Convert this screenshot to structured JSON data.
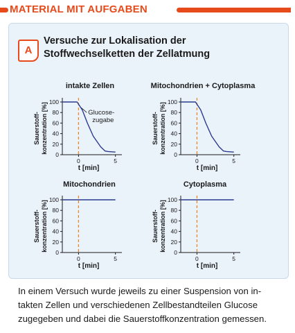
{
  "section": {
    "title": "MATERIAL MIT AUFGABEN",
    "accent_color": "#e64a1b"
  },
  "task": {
    "badge": "A",
    "heading_line1": "Versuche zur Lokalisation der",
    "heading_line2": "Stoffwechselketten der Zellatmung"
  },
  "caption": {
    "line1": "In einem Versuch wurde jeweils zu einer Suspension von in-",
    "line2": "takten Zellen und verschiedenen Zellbestandteilen Glucose",
    "line3": "zugegeben und dabei die Sauerstoffkonzentration gemessen."
  },
  "chart_data": [
    {
      "type": "line",
      "title": "intakte Zellen",
      "xlabel": "t [min]",
      "ylabel_line1": "Sauerstoff-",
      "ylabel_line2": "konzentration [%]",
      "x_ticks": [
        "0",
        "5"
      ],
      "y_ticks": [
        "0",
        "20",
        "40",
        "60",
        "80",
        "100"
      ],
      "xlim": [
        -2.2,
        5.5
      ],
      "ylim": [
        0,
        100
      ],
      "marker_x": 0,
      "annotation_line1": "Glucose-",
      "annotation_line2": "zugabe",
      "series": [
        {
          "x": [
            -2.2,
            -0.2,
            0.5,
            1.2,
            2.0,
            3.0,
            3.6,
            4.0,
            5.0
          ],
          "y": [
            100,
            100,
            85,
            60,
            35,
            15,
            7,
            6,
            5
          ],
          "color": "#2b3a8f"
        }
      ]
    },
    {
      "type": "line",
      "title": "Mitochondrien + Cytoplasma",
      "xlabel": "t [min]",
      "ylabel_line1": "Sauerstoff-",
      "ylabel_line2": "konzentration [%]",
      "x_ticks": [
        "0",
        "5"
      ],
      "y_ticks": [
        "0",
        "20",
        "40",
        "60",
        "80",
        "100"
      ],
      "xlim": [
        -2.2,
        5.5
      ],
      "ylim": [
        0,
        100
      ],
      "marker_x": 0,
      "series": [
        {
          "x": [
            -2.2,
            -0.2,
            0.5,
            1.2,
            2.0,
            3.0,
            3.6,
            4.0,
            5.0
          ],
          "y": [
            100,
            100,
            85,
            60,
            35,
            15,
            7,
            6,
            5
          ],
          "color": "#2b3a8f"
        }
      ]
    },
    {
      "type": "line",
      "title": "Mitochondrien",
      "xlabel": "t [min]",
      "ylabel_line1": "Sauerstoff-",
      "ylabel_line2": "konzentration [%]",
      "x_ticks": [
        "0",
        "5"
      ],
      "y_ticks": [
        "0",
        "20",
        "40",
        "60",
        "80",
        "100"
      ],
      "xlim": [
        -2.2,
        5.5
      ],
      "ylim": [
        0,
        100
      ],
      "marker_x": 0,
      "series": [
        {
          "x": [
            -2.2,
            5.0
          ],
          "y": [
            100,
            100
          ],
          "color": "#2b3a8f"
        }
      ]
    },
    {
      "type": "line",
      "title": "Cytoplasma",
      "xlabel": "t [min]",
      "ylabel_line1": "Sauerstoff-",
      "ylabel_line2": "konzentration [%]",
      "x_ticks": [
        "0",
        "5"
      ],
      "y_ticks": [
        "0",
        "20",
        "40",
        "60",
        "80",
        "100"
      ],
      "xlim": [
        -2.2,
        5.5
      ],
      "ylim": [
        0,
        100
      ],
      "marker_x": 0,
      "series": [
        {
          "x": [
            -2.2,
            5.0
          ],
          "y": [
            100,
            100
          ],
          "color": "#2b3a8f"
        }
      ]
    }
  ]
}
